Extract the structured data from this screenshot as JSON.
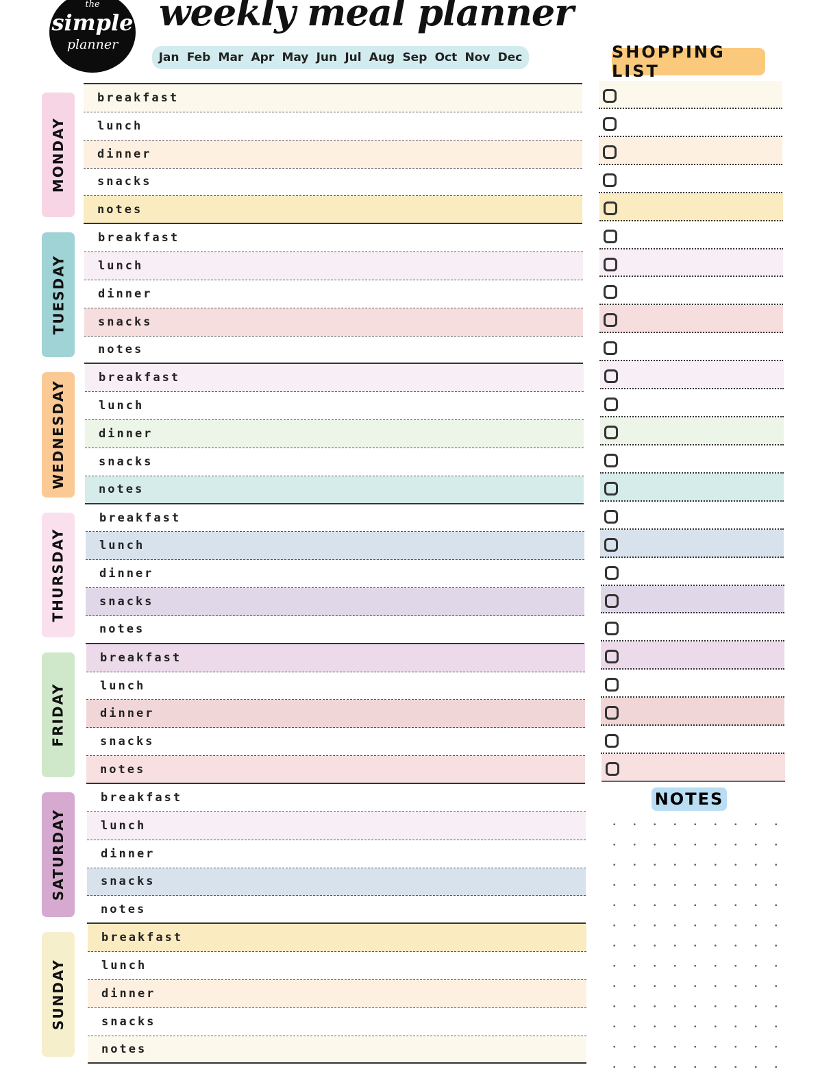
{
  "logo": {
    "line1": "the",
    "line2": "simple",
    "line3": "planner"
  },
  "title": "weekly meal planner",
  "months": [
    "Jan",
    "Feb",
    "Mar",
    "Apr",
    "May",
    "Jun",
    "Jul",
    "Aug",
    "Sep",
    "Oct",
    "Nov",
    "Dec"
  ],
  "meals": [
    "breakfast",
    "lunch",
    "dinner",
    "snacks",
    "notes"
  ],
  "days": [
    {
      "name": "MONDAY",
      "color": "#f8d5e5",
      "rows": [
        "#fcf9ec",
        "#ffffff",
        "#fdf0e0",
        "#ffffff",
        "#faebc0"
      ]
    },
    {
      "name": "TUESDAY",
      "color": "#9fd3d6",
      "rows": [
        "#ffffff",
        "#f8eef5",
        "#ffffff",
        "#f7dede",
        "#ffffff"
      ]
    },
    {
      "name": "WEDNESDAY",
      "color": "#fbc994",
      "rows": [
        "#f8eef5",
        "#ffffff",
        "#edf5e8",
        "#ffffff",
        "#d6ecea"
      ]
    },
    {
      "name": "THURSDAY",
      "color": "#fae0ec",
      "rows": [
        "#ffffff",
        "#d8e2ec",
        "#ffffff",
        "#e0d8e8",
        "#ffffff"
      ]
    },
    {
      "name": "FRIDAY",
      "color": "#cfe8c9",
      "rows": [
        "#ecdaeb",
        "#ffffff",
        "#f1d6d8",
        "#ffffff",
        "#f8e0e0"
      ]
    },
    {
      "name": "SATURDAY",
      "color": "#d6a9d0",
      "rows": [
        "#ffffff",
        "#f8eef5",
        "#ffffff",
        "#d8e2ec",
        "#ffffff"
      ]
    },
    {
      "name": "SUNDAY",
      "color": "#f6efcc",
      "rows": [
        "#faebc0",
        "#ffffff",
        "#fdf0e0",
        "#ffffff",
        "#fcf9ec"
      ]
    }
  ],
  "shopping": {
    "title": "SHOPPING LIST",
    "item_count": 25
  },
  "notes": {
    "title": "NOTES"
  }
}
